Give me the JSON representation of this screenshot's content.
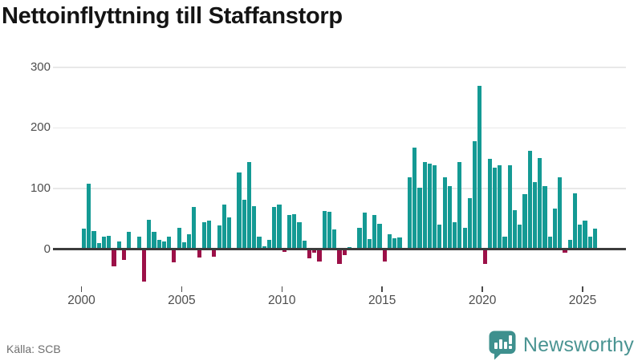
{
  "title": "Nettoinflyttning till Staffanstorp",
  "source": "Källa: SCB",
  "branding": {
    "name": "Newsworthy",
    "icon": "newsworthy-chart-bubble-icon"
  },
  "colors": {
    "positive_bar": "#149a94",
    "negative_bar": "#9c1048",
    "gridline": "#e8e8e8",
    "zero_line": "#3c3c3c",
    "axis_text": "#4d4d4d",
    "title_text": "#141414",
    "source_text": "#6e6e6e",
    "brand_teal": "#4a9492"
  },
  "chart_data": {
    "type": "bar",
    "title": "Nettoinflyttning till Staffanstorp",
    "xlabel": "",
    "ylabel": "",
    "frequency": "quarterly",
    "legend": null,
    "grid": true,
    "ylim": [
      -60,
      310
    ],
    "y_ticks": [
      0,
      100,
      200,
      300
    ],
    "x_tick_labels": [
      "2000",
      "2005",
      "2010",
      "2015",
      "2020",
      "2025"
    ],
    "series_by_year": [
      {
        "year": 2000,
        "quarters": [
          34,
          108,
          30,
          10
        ]
      },
      {
        "year": 2001,
        "quarters": [
          21,
          22,
          -29,
          12
        ]
      },
      {
        "year": 2002,
        "quarters": [
          -18,
          28,
          0,
          20
        ]
      },
      {
        "year": 2003,
        "quarters": [
          -53,
          48,
          29,
          15
        ]
      },
      {
        "year": 2004,
        "quarters": [
          13,
          20,
          -22,
          35
        ]
      },
      {
        "year": 2005,
        "quarters": [
          11,
          24,
          69,
          -14
        ]
      },
      {
        "year": 2006,
        "quarters": [
          45,
          47,
          -13,
          39
        ]
      },
      {
        "year": 2007,
        "quarters": [
          73,
          52,
          0,
          126
        ]
      },
      {
        "year": 2008,
        "quarters": [
          81,
          144,
          71,
          20
        ]
      },
      {
        "year": 2009,
        "quarters": [
          4,
          15,
          70,
          73
        ]
      },
      {
        "year": 2010,
        "quarters": [
          -5,
          56,
          58,
          44
        ]
      },
      {
        "year": 2011,
        "quarters": [
          14,
          -15,
          -6,
          -21
        ]
      },
      {
        "year": 2012,
        "quarters": [
          63,
          62,
          33,
          -24
        ]
      },
      {
        "year": 2013,
        "quarters": [
          -10,
          3,
          2,
          35
        ]
      },
      {
        "year": 2014,
        "quarters": [
          60,
          17,
          56,
          42
        ]
      },
      {
        "year": 2015,
        "quarters": [
          -21,
          24,
          18,
          19
        ]
      },
      {
        "year": 2016,
        "quarters": [
          0,
          118,
          167,
          101
        ]
      },
      {
        "year": 2017,
        "quarters": [
          143,
          141,
          138,
          40
        ]
      },
      {
        "year": 2018,
        "quarters": [
          119,
          104,
          45,
          144
        ]
      },
      {
        "year": 2019,
        "quarters": [
          35,
          84,
          178,
          270
        ]
      },
      {
        "year": 2020,
        "quarters": [
          -25,
          149,
          135,
          139
        ]
      },
      {
        "year": 2021,
        "quarters": [
          20,
          138,
          64,
          41
        ]
      },
      {
        "year": 2022,
        "quarters": [
          91,
          162,
          110,
          150
        ]
      },
      {
        "year": 2023,
        "quarters": [
          104,
          21,
          67,
          119
        ]
      },
      {
        "year": 2024,
        "quarters": [
          -6,
          15,
          92,
          40
        ]
      },
      {
        "year": 2025,
        "quarters": [
          47,
          21,
          34
        ]
      }
    ]
  }
}
